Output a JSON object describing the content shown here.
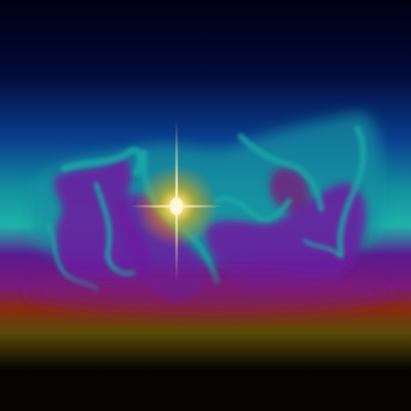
{
  "scene": {
    "description_visible_text": "",
    "palette": {
      "sky_top": "#000010",
      "sky_navy": "#020a3a",
      "band_blue": "#0a3f8f",
      "band_teal": "#138fa0",
      "band_cyan": "#1fb3a8",
      "band_purple": "#5a1a8f",
      "band_magenta": "#7a1a7a",
      "band_rust": "#8a2a10",
      "band_olive": "#5a4a08",
      "ground": "#050400",
      "plume_purple": "#6a1ea0",
      "plume_teal": "#1aa8a8",
      "star_core": "#fff8d8",
      "star_glow": "#ffb400"
    }
  }
}
